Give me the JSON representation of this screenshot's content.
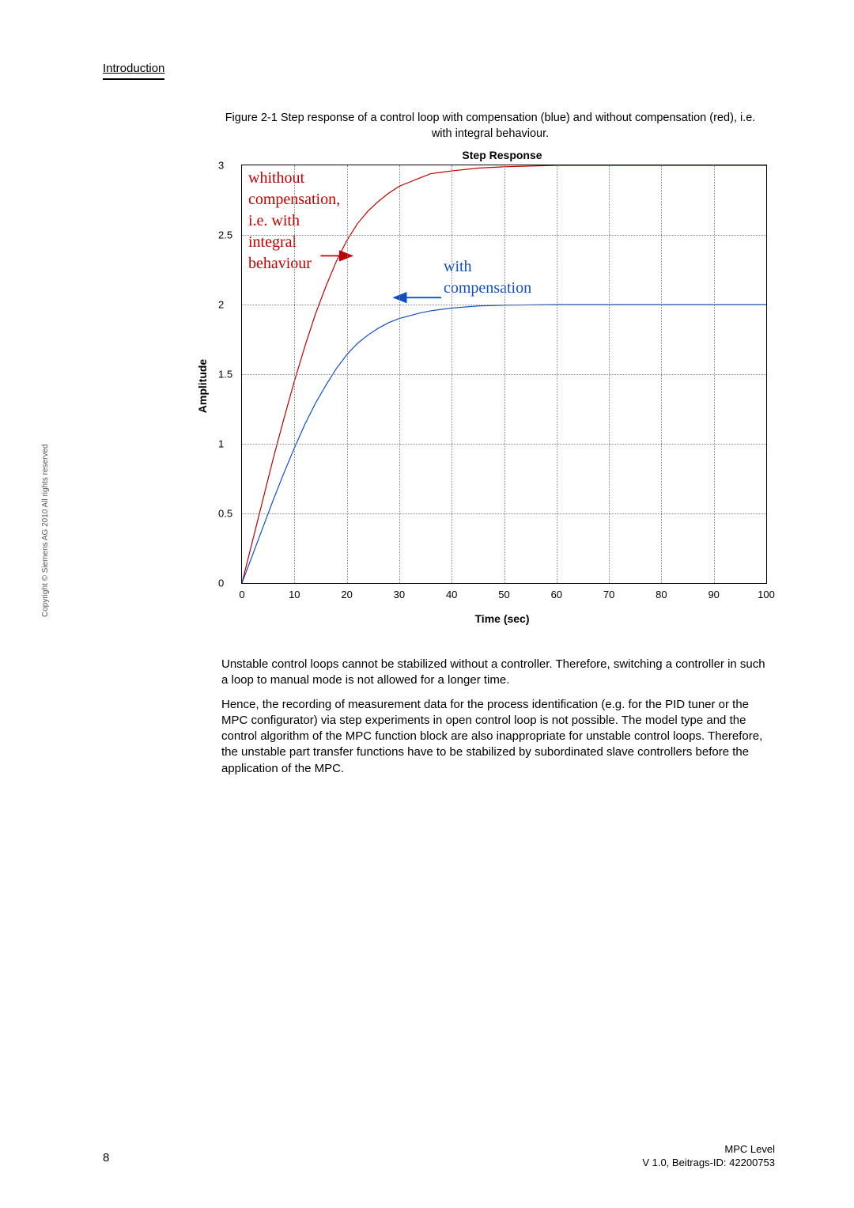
{
  "header": {
    "section": "Introduction"
  },
  "figure": {
    "caption": "Figure 2-1 Step response of a control loop with compensation (blue) and without compensation (red), i.e. with integral behaviour.",
    "chart": {
      "type": "line",
      "title": "Step Response",
      "xlabel": "Time (sec)",
      "ylabel": "Amplitude",
      "xlim": [
        0,
        100
      ],
      "ylim": [
        0,
        3
      ],
      "xticks": [
        0,
        10,
        20,
        30,
        40,
        50,
        60,
        70,
        80,
        90,
        100
      ],
      "yticks": [
        0,
        0.5,
        1,
        1.5,
        2,
        2.5,
        3
      ],
      "grid_color": "#888888",
      "background_color": "#ffffff",
      "series": [
        {
          "name": "without_compensation",
          "color": "#c00000",
          "width": 1.2,
          "points": [
            [
              0,
              0
            ],
            [
              2,
              0.3
            ],
            [
              4,
              0.6
            ],
            [
              6,
              0.9
            ],
            [
              8,
              1.18
            ],
            [
              10,
              1.45
            ],
            [
              12,
              1.7
            ],
            [
              14,
              1.93
            ],
            [
              16,
              2.13
            ],
            [
              18,
              2.31
            ],
            [
              20,
              2.46
            ],
            [
              22,
              2.58
            ],
            [
              24,
              2.67
            ],
            [
              26,
              2.74
            ],
            [
              28,
              2.8
            ],
            [
              30,
              2.85
            ],
            [
              32,
              2.88
            ],
            [
              34,
              2.91
            ],
            [
              36,
              2.94
            ],
            [
              38,
              2.95
            ],
            [
              40,
              2.96
            ],
            [
              45,
              2.98
            ],
            [
              50,
              2.99
            ],
            [
              60,
              3.0
            ],
            [
              70,
              3.0
            ],
            [
              80,
              3.0
            ],
            [
              90,
              3.0
            ],
            [
              100,
              3.0
            ]
          ]
        },
        {
          "name": "with_compensation",
          "color": "#1050c0",
          "width": 1.2,
          "points": [
            [
              0,
              0
            ],
            [
              2,
              0.2
            ],
            [
              4,
              0.4
            ],
            [
              6,
              0.6
            ],
            [
              8,
              0.79
            ],
            [
              10,
              0.97
            ],
            [
              12,
              1.14
            ],
            [
              14,
              1.29
            ],
            [
              16,
              1.42
            ],
            [
              18,
              1.54
            ],
            [
              20,
              1.64
            ],
            [
              22,
              1.72
            ],
            [
              24,
              1.78
            ],
            [
              26,
              1.83
            ],
            [
              28,
              1.87
            ],
            [
              30,
              1.9
            ],
            [
              32,
              1.92
            ],
            [
              34,
              1.94
            ],
            [
              36,
              1.955
            ],
            [
              38,
              1.965
            ],
            [
              40,
              1.975
            ],
            [
              45,
              1.99
            ],
            [
              50,
              1.995
            ],
            [
              60,
              2.0
            ],
            [
              70,
              2.0
            ],
            [
              80,
              2.0
            ],
            [
              90,
              2.0
            ],
            [
              100,
              2.0
            ]
          ]
        }
      ],
      "annotations": {
        "red_label_lines": [
          "whithout",
          "compensation,",
          "i.e. with",
          "integral",
          "behaviour"
        ],
        "blue_label_lines": [
          "with",
          "compensation"
        ],
        "red_label_color": "#c00000",
        "blue_label_color": "#1050c0",
        "annotation_fontsize": 20
      },
      "arrows": {
        "red_arrow": {
          "from": [
            15,
            2.35
          ],
          "to": [
            21,
            2.35
          ],
          "color": "#c00000"
        },
        "blue_arrow": {
          "from": [
            38,
            2.05
          ],
          "to": [
            29,
            2.05
          ],
          "color": "#1050c0"
        }
      }
    }
  },
  "body": {
    "p1": "Unstable control loops cannot be stabilized without a controller. Therefore, switching a controller in such a loop to manual mode is not allowed for a longer time.",
    "p2": "Hence, the recording of measurement data for the process identification (e.g. for the PID tuner or the MPC configurator) via step experiments in open control loop is not possible. The model type and the control algorithm of the MPC function block are also inappropriate for unstable control loops. Therefore, the unstable part transfer functions have to be stabilized by subordinated slave controllers before the application of the MPC."
  },
  "footer": {
    "page": "8",
    "right1": "MPC Level",
    "right2": "V 1.0, Beitrags-ID: 42200753",
    "copyright": "Copyright © Siemens AG 2010 All rights reserved"
  }
}
